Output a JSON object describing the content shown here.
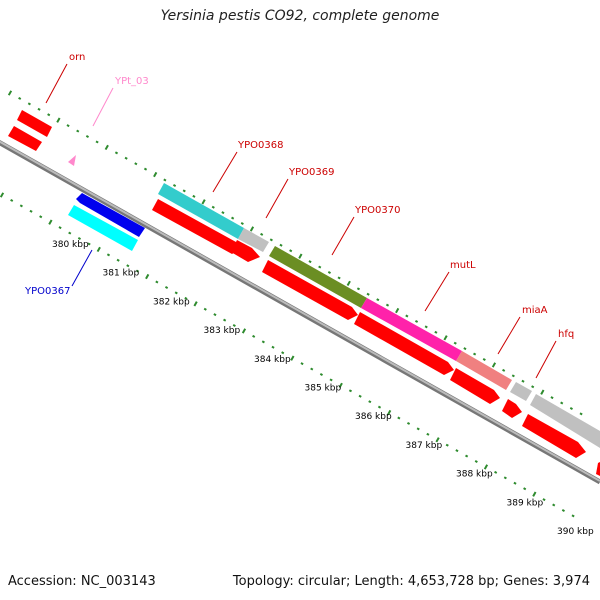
{
  "title": "Yersinia pestis CO92, complete genome",
  "footer": {
    "accession": "Accession: NC_003143",
    "info": "Topology: circular; Length: 4,653,728 bp; Genes: 3,974"
  },
  "colors": {
    "red": "#ff0000",
    "cyan": "#33cccc",
    "bright_cyan": "#00ffff",
    "blue": "#0000ee",
    "grey": "#c0c0c0",
    "olive": "#6b8e23",
    "magenta": "#ff22aa",
    "salmon": "#f08080",
    "pink": "#ff88cc",
    "backbone": "#888888",
    "tick": "#2e8b2e"
  },
  "scale": {
    "unit": "kbp",
    "ticks": [
      {
        "value": 380,
        "label": "380 kbp"
      },
      {
        "value": 381,
        "label": "381 kbp"
      },
      {
        "value": 382,
        "label": "382 kbp"
      },
      {
        "value": 383,
        "label": "383 kbp"
      },
      {
        "value": 384,
        "label": "384 kbp"
      },
      {
        "value": 385,
        "label": "385 kbp"
      },
      {
        "value": 386,
        "label": "386 kbp"
      },
      {
        "value": 387,
        "label": "387 kbp"
      },
      {
        "value": 388,
        "label": "388 kbp"
      },
      {
        "value": 389,
        "label": "389 kbp"
      },
      {
        "value": 390,
        "label": "390 kbp"
      }
    ]
  },
  "gene_labels": [
    {
      "name": "orn",
      "color": "#cc0000"
    },
    {
      "name": "YPt_03",
      "color": "#ff88cc"
    },
    {
      "name": "YPO0368",
      "color": "#cc0000"
    },
    {
      "name": "YPO0369",
      "color": "#cc0000"
    },
    {
      "name": "YPO0370",
      "color": "#cc0000"
    },
    {
      "name": "mutL",
      "color": "#cc0000"
    },
    {
      "name": "miaA",
      "color": "#cc0000"
    },
    {
      "name": "hfq",
      "color": "#cc0000"
    },
    {
      "name": "YPO0367",
      "color": "#0000cc"
    }
  ]
}
